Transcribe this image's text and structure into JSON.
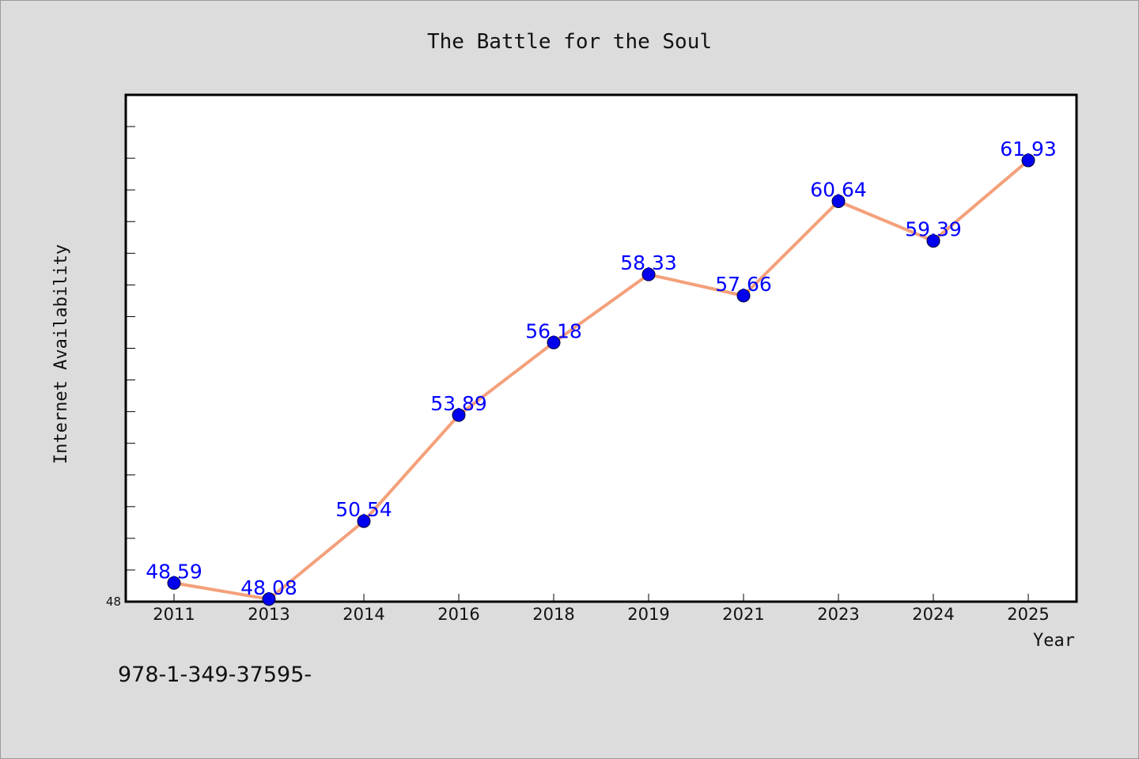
{
  "chart_data": {
    "type": "line",
    "title": "The Battle for the Soul",
    "xlabel": "Year",
    "ylabel": "Internet Availability",
    "categories": [
      "2011",
      "2013",
      "2014",
      "2016",
      "2018",
      "2019",
      "2021",
      "2023",
      "2024",
      "2025"
    ],
    "series": [
      {
        "values": [
          48.59,
          48.08,
          50.54,
          53.89,
          56.18,
          58.33,
          57.66,
          60.64,
          59.39,
          61.93
        ],
        "labels": [
          "48.59",
          "48.08",
          "50.54",
          "53.89",
          "56.18",
          "58.33",
          "57.66",
          "60.64",
          "59.39",
          "61.93"
        ],
        "line_color": "#f4a07a",
        "marker_color": "#0000ee"
      }
    ],
    "ylim": [
      48,
      64
    ],
    "yticks": [
      {
        "value": 48,
        "label": "48"
      }
    ],
    "grid": false,
    "legend": "none"
  },
  "footer": {
    "text": "978-1-349-37595-"
  },
  "colors": {
    "background": "#dcdcdc",
    "plot_background": "#ffffff",
    "data_label": "#0000ff"
  }
}
